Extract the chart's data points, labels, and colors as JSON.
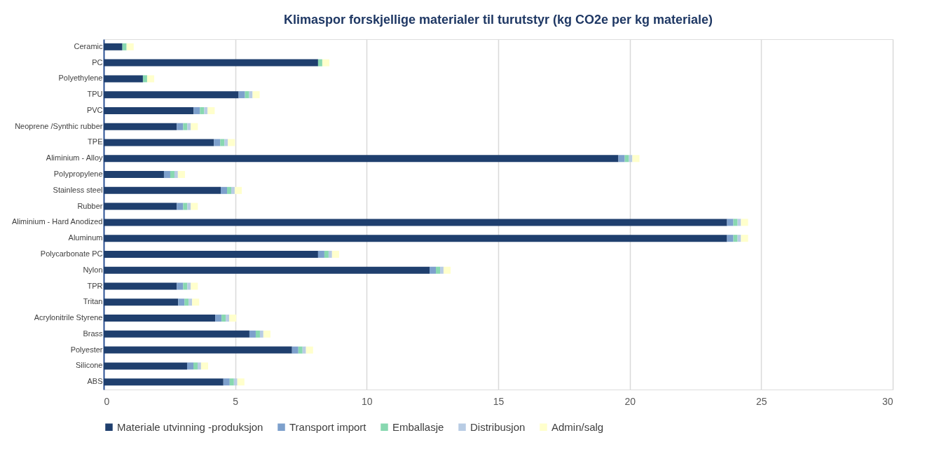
{
  "chart_data": {
    "type": "bar",
    "orientation": "horizontal",
    "stacked": true,
    "title": "Klimaspor forskjellige materialer til turutstyr (kg CO2e per kg materiale)",
    "categories": [
      "Ceramic",
      "PC",
      "Polyethylene",
      "TPU",
      "PVC",
      "Neoprene /Synthic rubber",
      "TPE",
      "Aliminium - Alloy",
      "Polypropylene",
      "Stainless steel",
      "Rubber",
      "Aliminium - Hard Anodized",
      "Aluminum",
      "Polycarbonate PC",
      "Nylon",
      "TPR",
      "Tritan",
      "Acrylonitrile Styrene",
      "Brass",
      "Polyester",
      "Silicone",
      "ABS"
    ],
    "series": [
      {
        "name": "Materiale utvinning -produksjon",
        "color": "#1f3f6e",
        "values": [
          0.71,
          8.15,
          1.49,
          5.13,
          3.42,
          2.78,
          4.19,
          19.57,
          2.29,
          4.45,
          2.78,
          23.7,
          23.7,
          8.15,
          12.39,
          2.78,
          2.83,
          4.24,
          5.54,
          7.16,
          3.17,
          4.55
        ]
      },
      {
        "name": "Transport import",
        "color": "#7da0cc",
        "values": [
          null,
          null,
          null,
          0.24,
          0.24,
          0.24,
          0.24,
          0.24,
          0.24,
          0.24,
          0.24,
          0.24,
          0.24,
          0.24,
          0.24,
          0.24,
          0.24,
          0.24,
          0.24,
          0.24,
          0.24,
          0.24
        ]
      },
      {
        "name": "Emballasje",
        "color": "#88d8b0",
        "values": [
          0.16,
          0.16,
          0.16,
          0.16,
          0.16,
          0.16,
          0.16,
          0.16,
          0.16,
          0.16,
          0.16,
          0.16,
          0.16,
          0.16,
          0.16,
          0.16,
          0.16,
          0.16,
          0.16,
          0.16,
          0.16,
          0.16
        ]
      },
      {
        "name": "Distribusjon",
        "color": "#b8cce4",
        "values": [
          null,
          null,
          null,
          0.13,
          0.13,
          0.13,
          0.13,
          0.13,
          0.13,
          0.13,
          0.13,
          0.13,
          0.13,
          0.13,
          0.13,
          0.13,
          0.13,
          0.13,
          0.13,
          0.13,
          0.13,
          0.13
        ]
      },
      {
        "name": "Admin/salg",
        "color": "#ffffcc",
        "values": [
          0.27,
          0.27,
          0.27,
          0.27,
          0.27,
          0.27,
          0.27,
          0.27,
          0.27,
          0.27,
          0.27,
          0.27,
          0.27,
          0.27,
          0.27,
          0.27,
          0.27,
          0.27,
          0.27,
          0.27,
          0.27,
          0.27
        ]
      }
    ],
    "xlim": [
      0,
      30
    ],
    "xticks": [
      0,
      5,
      10,
      15,
      20,
      25,
      30
    ],
    "grid": "x",
    "legend": "bottom"
  }
}
